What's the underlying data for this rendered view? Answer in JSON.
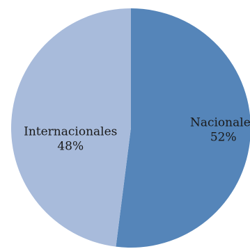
{
  "chart_data": {
    "type": "pie",
    "title": "",
    "slices": [
      {
        "label": "Nacionales",
        "value": 52,
        "value_label": "52%",
        "color": "#5585b9"
      },
      {
        "label": "Internacionales",
        "value": 48,
        "value_label": "48%",
        "color": "#a8bbdb"
      }
    ],
    "start_angle_deg": 0,
    "direction": "clockwise",
    "legend": "none",
    "labels": "inside"
  }
}
